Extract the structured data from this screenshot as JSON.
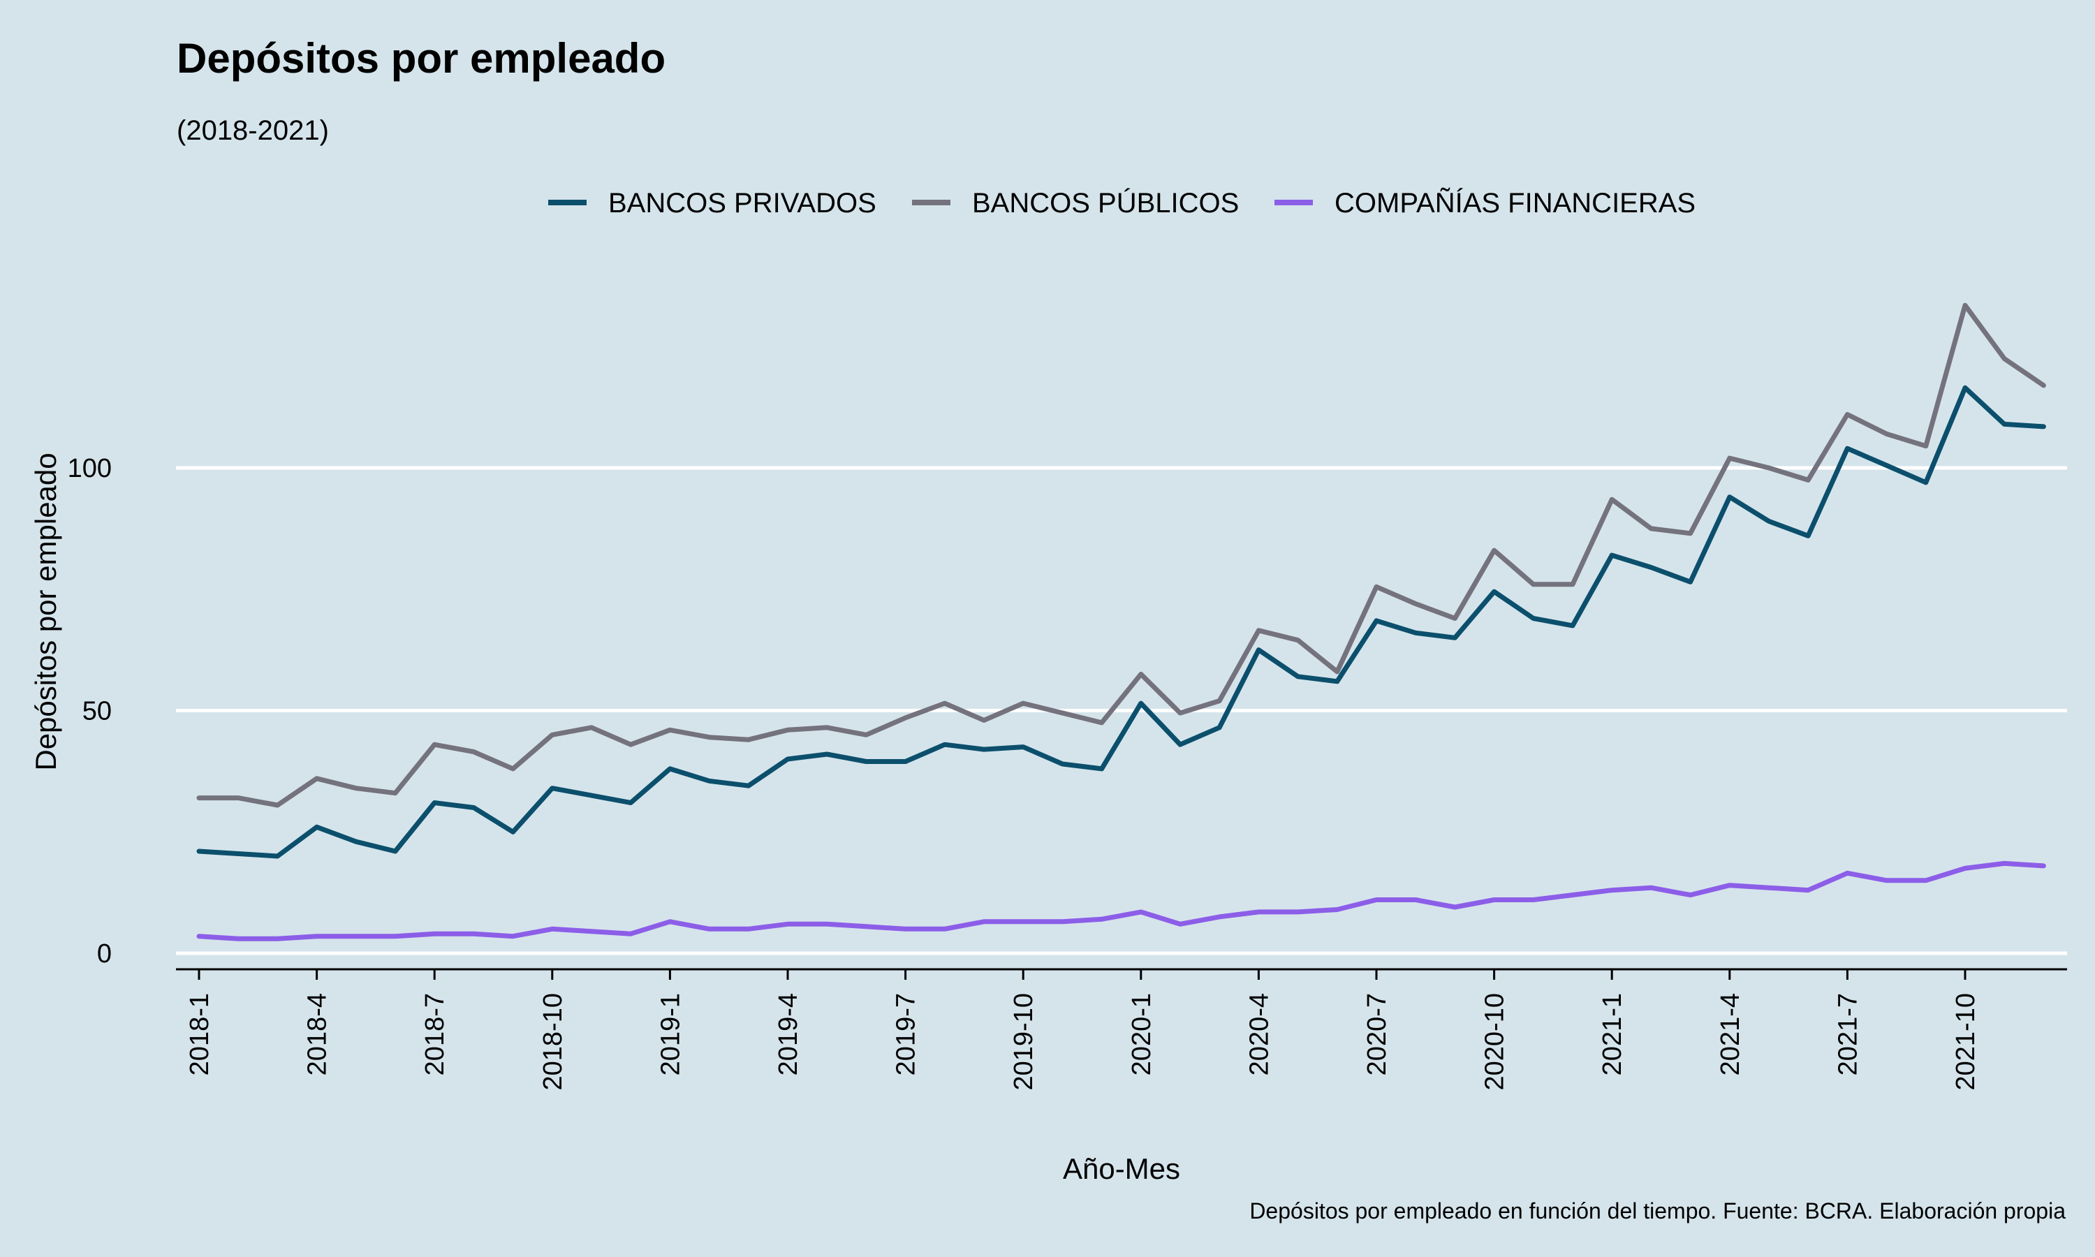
{
  "chart_data": {
    "type": "line",
    "title": "Depósitos por empleado",
    "subtitle": "(2018-2021)",
    "xlabel": "Año-Mes",
    "ylabel": "Depósitos por empleado",
    "caption": "Depósitos por empleado en función del tiempo. Fuente: BCRA. Elaboración propia",
    "ylim": [
      0,
      140
    ],
    "yticks": [
      0,
      50,
      100
    ],
    "grid": "horizontal",
    "legend_position": "top",
    "x": [
      "2018-1",
      "2018-2",
      "2018-3",
      "2018-4",
      "2018-5",
      "2018-6",
      "2018-7",
      "2018-8",
      "2018-9",
      "2018-10",
      "2018-11",
      "2018-12",
      "2019-1",
      "2019-2",
      "2019-3",
      "2019-4",
      "2019-5",
      "2019-6",
      "2019-7",
      "2019-8",
      "2019-9",
      "2019-10",
      "2019-11",
      "2019-12",
      "2020-1",
      "2020-2",
      "2020-3",
      "2020-4",
      "2020-5",
      "2020-6",
      "2020-7",
      "2020-8",
      "2020-9",
      "2020-10",
      "2020-11",
      "2020-12",
      "2021-1",
      "2021-2",
      "2021-3",
      "2021-4",
      "2021-5",
      "2021-6",
      "2021-7",
      "2021-8",
      "2021-9",
      "2021-10",
      "2021-11",
      "2021-12"
    ],
    "xtick_labels": [
      "2018-1",
      "2018-4",
      "2018-7",
      "2018-10",
      "2019-1",
      "2019-4",
      "2019-7",
      "2019-10",
      "2020-1",
      "2020-4",
      "2020-7",
      "2020-10",
      "2021-1",
      "2021-4",
      "2021-7",
      "2021-10"
    ],
    "series": [
      {
        "name": "BANCOS PRIVADOS",
        "color": "#0b4f6c",
        "values": [
          21,
          20.5,
          20,
          26,
          23,
          21,
          31,
          30,
          25,
          34,
          32.5,
          31,
          38,
          35.5,
          34.5,
          40,
          41,
          39.5,
          39.5,
          43,
          42,
          42.5,
          39,
          38,
          51.5,
          43,
          46.5,
          62.5,
          57,
          56,
          68.5,
          66,
          65,
          74.5,
          69,
          67.5,
          82,
          79.5,
          76.5,
          94,
          89,
          86,
          104,
          100.5,
          97,
          116.5,
          109,
          108.5
        ]
      },
      {
        "name": "BANCOS PÚBLICOS",
        "color": "#74727d",
        "values": [
          32,
          32,
          30.5,
          36,
          34,
          33,
          43,
          41.5,
          38,
          45,
          46.5,
          43,
          46,
          44.5,
          44,
          46,
          46.5,
          45,
          48.5,
          51.5,
          48,
          51.5,
          49.5,
          47.5,
          57.5,
          49.5,
          52,
          66.5,
          64.5,
          58,
          75.5,
          72,
          69,
          83,
          76,
          76,
          93.5,
          87.5,
          86.5,
          102,
          100,
          97.5,
          111,
          107,
          104.5,
          133.5,
          122.5,
          117
        ]
      },
      {
        "name": "COMPAÑÍAS FINANCIERAS",
        "color": "#8c5ee8",
        "values": [
          3.5,
          3,
          3,
          3.5,
          3.5,
          3.5,
          4,
          4,
          3.5,
          5,
          4.5,
          4,
          6.5,
          5,
          5,
          6,
          6,
          5.5,
          5,
          5,
          6.5,
          6.5,
          6.5,
          7,
          8.5,
          6,
          7.5,
          8.5,
          8.5,
          9,
          11,
          11,
          9.5,
          11,
          11,
          12,
          13,
          13.5,
          12,
          14,
          13.5,
          13,
          16.5,
          15,
          15,
          17.5,
          18.5,
          18
        ]
      }
    ]
  }
}
